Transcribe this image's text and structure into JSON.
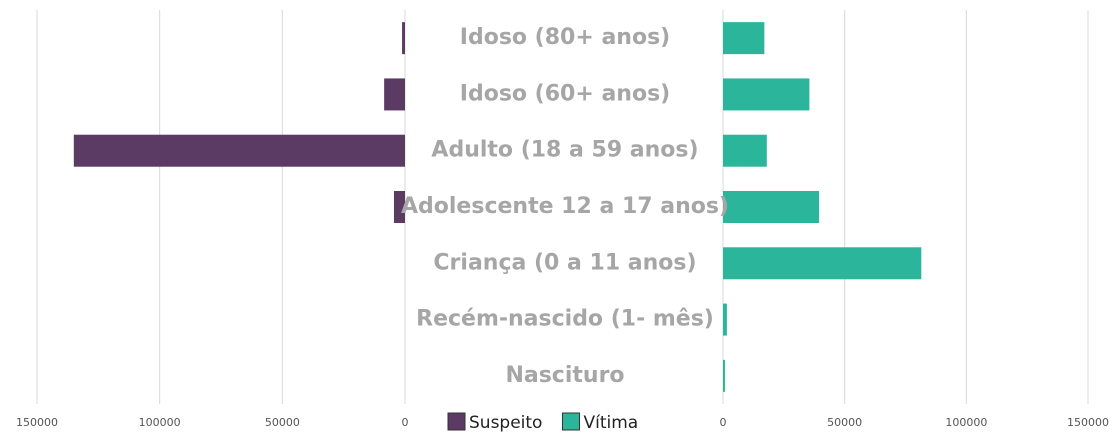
{
  "chart_data": {
    "type": "butterfly",
    "categories": [
      "Idoso (80+ anos)",
      "Idoso (60+ anos)",
      "Adulto (18 a 59 anos)",
      "Adolescente 12 a 17 anos)",
      "Criança (0 a 11 anos)",
      "Recém-nascido (1- mês)",
      "Nascituro"
    ],
    "series": [
      {
        "name": "Suspeito",
        "color": "#5b3a63",
        "side": "left",
        "values": [
          1200,
          8500,
          135000,
          4500,
          0,
          0,
          0
        ]
      },
      {
        "name": "Vítima",
        "color": "#2bb59a",
        "side": "right",
        "values": [
          17000,
          35500,
          18000,
          39500,
          81500,
          1600,
          800
        ]
      }
    ],
    "xlim_left": [
      0,
      150000
    ],
    "xticks_left": [
      0,
      50000,
      100000,
      150000
    ],
    "xlim_right": [
      0,
      150000
    ],
    "xticks_right": [
      0,
      50000,
      100000,
      150000
    ],
    "grid": true,
    "legend": "bottom"
  }
}
